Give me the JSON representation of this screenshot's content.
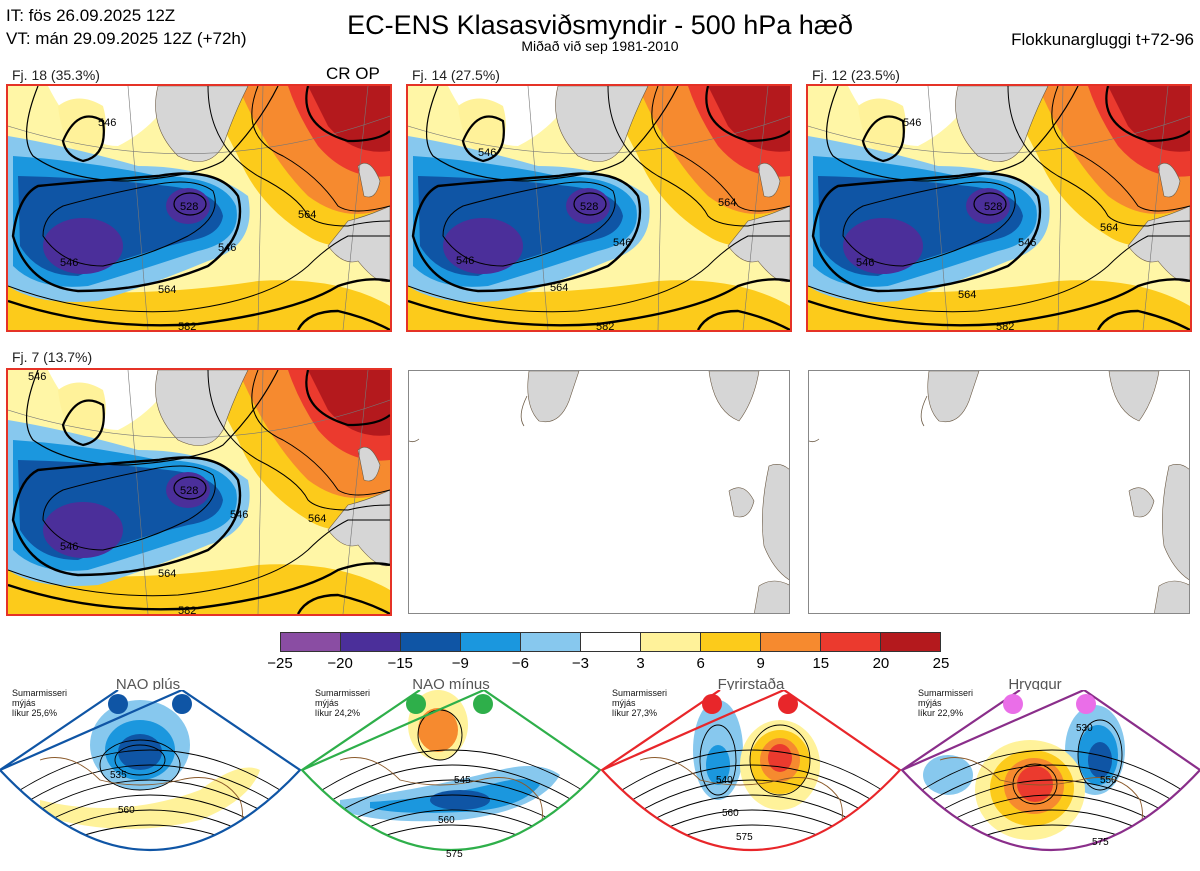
{
  "header": {
    "it_line": "IT: fös 26.09.2025 12Z",
    "vt_line": "VT: mán 29.09.2025 12Z  (+72h)",
    "title": "EC-ENS Klasasviðsmyndir - 500 hPa hæð",
    "subtitle": "Miðað við sep 1981-2010",
    "window": "Flokkunargluggi t+72-96"
  },
  "clusters": [
    {
      "label": "Fj. 18 (35.3%)",
      "tag": "CR OP",
      "contours": [
        "546",
        "528",
        "546",
        "564",
        "564",
        "546",
        "582"
      ]
    },
    {
      "label": "Fj. 14 (27.5%)",
      "contours": [
        "546",
        "528",
        "546",
        "546",
        "564",
        "564",
        "582"
      ]
    },
    {
      "label": "Fj. 12 (23.5%)",
      "contours": [
        "546",
        "528",
        "546",
        "546",
        "564",
        "564",
        "582"
      ]
    },
    {
      "label": "Fj. 7 (13.7%)",
      "contours": [
        "546",
        "528",
        "546",
        "564",
        "564",
        "546",
        "582"
      ]
    }
  ],
  "colorbar": {
    "colors": [
      "#8a4da3",
      "#4b2f9a",
      "#0f55a5",
      "#1b97de",
      "#87c8ee",
      "#ffffff",
      "#fff29a",
      "#fccb1b",
      "#f68a2f",
      "#eb3a2e",
      "#b4191d"
    ],
    "ticks": [
      "−25",
      "−20",
      "−15",
      "−9",
      "−6",
      "−3",
      "3",
      "6",
      "9",
      "15",
      "20",
      "25"
    ]
  },
  "regimes": [
    {
      "name": "NAO plús",
      "info": [
        "Sumarmisseri",
        "mýjás",
        "líkur 25,6%"
      ],
      "contours": [
        "535",
        "560"
      ],
      "color": "#0f55a5"
    },
    {
      "name": "NAO mínus",
      "info": [
        "Sumarmisseri",
        "mýjás",
        "líkur 24,2%"
      ],
      "contours": [
        "545",
        "560",
        "575"
      ],
      "color": "#2eaf4a"
    },
    {
      "name": "Fyrirstaða",
      "info": [
        "Sumarmisseri",
        "mýjás",
        "líkur 27,3%"
      ],
      "contours": [
        "540",
        "560",
        "575"
      ],
      "color": "#e8262a"
    },
    {
      "name": "Hryggur",
      "info": [
        "Sumarmisseri",
        "mýjás",
        "líkur 22,9%"
      ],
      "contours": [
        "530",
        "550",
        "575"
      ],
      "color": "#ea6ee8"
    }
  ]
}
